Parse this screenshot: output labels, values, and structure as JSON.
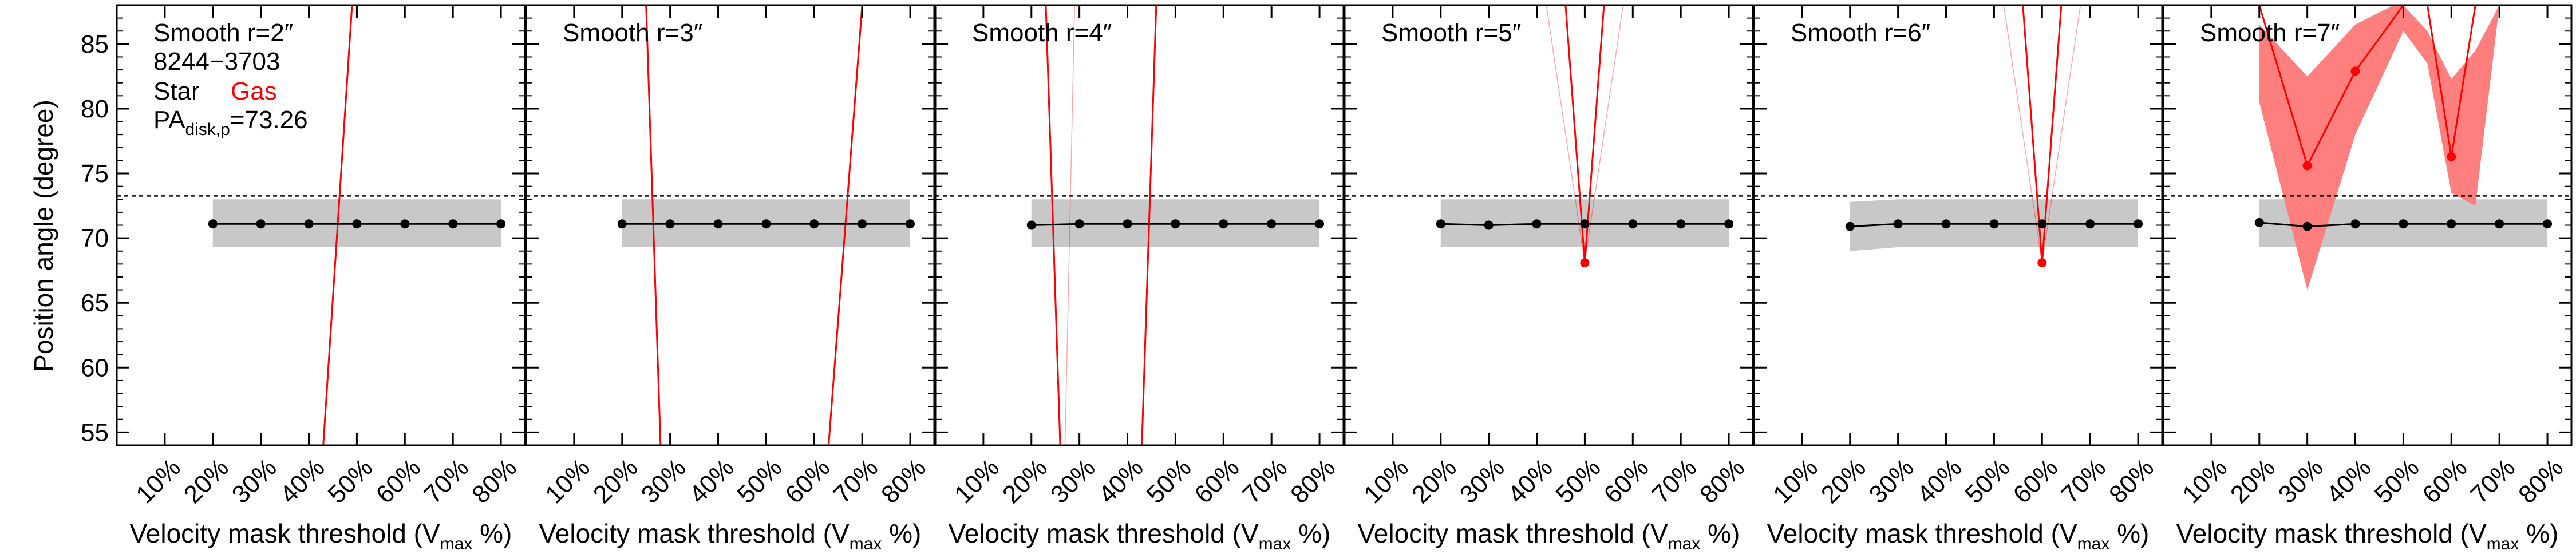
{
  "figure": {
    "ylabel": "Position angle (degree)",
    "xlabel": "Velocity mask threshold (V",
    "xlabel_sub": "max",
    "xlabel_tail": " %)",
    "galaxy_id": "8244−3703",
    "legend_star": "Star",
    "legend_gas": "Gas",
    "pa_label_prefix": "PA",
    "pa_label_sub": "disk,p",
    "pa_label_value": "=73.26"
  },
  "colors": {
    "star": "#000000",
    "gas": "#ff0000",
    "gas_band": "#ff7f7f",
    "star_band": "#c8c8c8",
    "reference_line": "#000000"
  },
  "chart_data": {
    "type": "line",
    "layout": "1x6 panels, shared y axis",
    "ylim": [
      54,
      88
    ],
    "yticks": [
      55,
      60,
      65,
      70,
      75,
      80,
      85
    ],
    "ytick_labels": [
      "55",
      "60",
      "65",
      "70",
      "75",
      "80",
      "85"
    ],
    "xlim": [
      0,
      85
    ],
    "xticks": [
      10,
      20,
      30,
      40,
      50,
      60,
      70,
      80
    ],
    "xtick_labels": [
      "10%",
      "20%",
      "30%",
      "40%",
      "50%",
      "60%",
      "70%",
      "80%"
    ],
    "reference_pa": 73.26,
    "grid": false,
    "panels": [
      {
        "title": "Smooth r=2″",
        "star": {
          "x": [
            20,
            30,
            40,
            50,
            60,
            70,
            80
          ],
          "y": [
            71.1,
            71.1,
            71.1,
            71.1,
            71.1,
            71.1,
            71.1
          ],
          "lo": [
            69.3,
            69.3,
            69.3,
            69.3,
            69.3,
            69.3,
            69.3
          ],
          "hi": [
            73.0,
            73.0,
            73.0,
            73.0,
            73.0,
            73.0,
            73.0
          ]
        },
        "gas_lines": [
          {
            "x": [
              43,
              49
            ],
            "y": [
              54,
              88
            ],
            "weight": "strong"
          }
        ],
        "gas_points": [],
        "gas_band": []
      },
      {
        "title": "Smooth r=3″",
        "star": {
          "x": [
            20,
            30,
            40,
            50,
            60,
            70,
            80
          ],
          "y": [
            71.1,
            71.1,
            71.1,
            71.1,
            71.1,
            71.1,
            71.1
          ],
          "lo": [
            69.3,
            69.3,
            69.3,
            69.3,
            69.3,
            69.3,
            69.3
          ],
          "hi": [
            73.0,
            73.0,
            73.0,
            73.0,
            73.0,
            73.0,
            73.0
          ]
        },
        "gas_lines": [
          {
            "x": [
              28,
              25
            ],
            "y": [
              54,
              88
            ],
            "weight": "strong"
          },
          {
            "x": [
              63,
              70
            ],
            "y": [
              54,
              88
            ],
            "weight": "strong"
          }
        ],
        "gas_points": [],
        "gas_band": []
      },
      {
        "title": "Smooth r=4″",
        "star": {
          "x": [
            20,
            30,
            40,
            50,
            60,
            70,
            80
          ],
          "y": [
            71.0,
            71.1,
            71.1,
            71.1,
            71.1,
            71.1,
            71.1
          ],
          "lo": [
            69.3,
            69.3,
            69.3,
            69.3,
            69.3,
            69.3,
            69.3
          ],
          "hi": [
            73.0,
            73.0,
            73.0,
            73.0,
            73.0,
            73.0,
            73.0
          ]
        },
        "gas_lines": [
          {
            "x": [
              26,
              23
            ],
            "y": [
              54,
              88
            ],
            "weight": "strong"
          },
          {
            "x": [
              43,
              46
            ],
            "y": [
              54,
              88
            ],
            "weight": "strong"
          },
          {
            "x": [
              27,
              29
            ],
            "y": [
              54,
              88
            ],
            "weight": "faint"
          }
        ],
        "gas_points": [],
        "gas_band": []
      },
      {
        "title": "Smooth r=5″",
        "star": {
          "x": [
            20,
            30,
            40,
            50,
            60,
            70,
            80
          ],
          "y": [
            71.1,
            71.0,
            71.1,
            71.1,
            71.1,
            71.1,
            71.1
          ],
          "lo": [
            69.3,
            69.3,
            69.3,
            69.3,
            69.3,
            69.3,
            69.3
          ],
          "hi": [
            73.0,
            73.0,
            73.0,
            73.0,
            73.0,
            73.0,
            73.0
          ]
        },
        "gas_lines": [
          {
            "x": [
              50,
              46
            ],
            "y": [
              68.1,
              88
            ],
            "weight": "strong"
          },
          {
            "x": [
              50,
              54
            ],
            "y": [
              68.1,
              88
            ],
            "weight": "strong"
          },
          {
            "x": [
              50,
              42
            ],
            "y": [
              68.1,
              88
            ],
            "weight": "faint"
          },
          {
            "x": [
              50,
              58
            ],
            "y": [
              68.1,
              88
            ],
            "weight": "faint"
          }
        ],
        "gas_points": [
          {
            "x": 50,
            "y": 68.1
          }
        ],
        "gas_band": []
      },
      {
        "title": "Smooth r=6″",
        "star": {
          "x": [
            20,
            30,
            40,
            50,
            60,
            70,
            80
          ],
          "y": [
            70.9,
            71.1,
            71.1,
            71.1,
            71.1,
            71.1,
            71.1
          ],
          "lo": [
            69.0,
            69.3,
            69.3,
            69.3,
            69.3,
            69.3,
            69.3
          ],
          "hi": [
            72.8,
            73.0,
            73.0,
            73.0,
            73.0,
            73.0,
            73.0
          ]
        },
        "gas_lines": [
          {
            "x": [
              60,
              56
            ],
            "y": [
              68.1,
              88
            ],
            "weight": "strong"
          },
          {
            "x": [
              60,
              64
            ],
            "y": [
              68.1,
              88
            ],
            "weight": "strong"
          },
          {
            "x": [
              60,
              52
            ],
            "y": [
              68.1,
              88
            ],
            "weight": "faint"
          },
          {
            "x": [
              60,
              68
            ],
            "y": [
              68.1,
              88
            ],
            "weight": "faint"
          }
        ],
        "gas_points": [
          {
            "x": 60,
            "y": 68.1
          }
        ],
        "gas_band": []
      },
      {
        "title": "Smooth r=7″",
        "star": {
          "x": [
            20,
            30,
            40,
            50,
            60,
            70,
            80
          ],
          "y": [
            71.2,
            70.9,
            71.1,
            71.1,
            71.1,
            71.1,
            71.1
          ],
          "lo": [
            69.3,
            69.3,
            69.3,
            69.3,
            69.3,
            69.3,
            69.3
          ],
          "hi": [
            73.0,
            73.0,
            73.0,
            73.0,
            73.0,
            73.0,
            73.0
          ]
        },
        "gas_lines": [
          {
            "x": [
              20,
              30,
              40,
              50
            ],
            "y": [
              88,
              75.6,
              82.9,
              88
            ],
            "weight": "strong"
          },
          {
            "x": [
              55,
              60,
              65
            ],
            "y": [
              88,
              76.3,
              88
            ],
            "weight": "strong"
          },
          {
            "x": [
              63,
              70
            ],
            "y": [
              88,
              88
            ],
            "weight": "strong"
          }
        ],
        "gas_points": [
          {
            "x": 30,
            "y": 75.6
          },
          {
            "x": 40,
            "y": 82.9
          },
          {
            "x": 60,
            "y": 76.3
          }
        ],
        "gas_band": [
          [
            20,
            86.5
          ],
          [
            30,
            82.5
          ],
          [
            40,
            86.5
          ],
          [
            48,
            88
          ],
          [
            50,
            88
          ],
          [
            55,
            86
          ],
          [
            60,
            82.3
          ],
          [
            65,
            84.5
          ],
          [
            70,
            88
          ],
          [
            70,
            88
          ],
          [
            65,
            72.5
          ],
          [
            60,
            73.5
          ],
          [
            55,
            83.5
          ],
          [
            50,
            86
          ],
          [
            40,
            78
          ],
          [
            30,
            66.0
          ],
          [
            20,
            80.5
          ]
        ]
      }
    ]
  }
}
